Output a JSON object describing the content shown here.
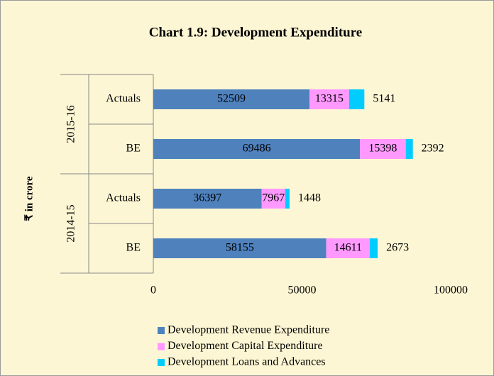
{
  "chart_data": {
    "type": "stacked_barh",
    "title": "Chart 1.9: Development Expenditure",
    "ylabel": "₹ in crore",
    "groups": [
      "2015-16",
      "2014-15"
    ],
    "categories": [
      "Actuals",
      "BE",
      "Actuals",
      "BE"
    ],
    "series": [
      {
        "name": "Development Revenue Expenditure",
        "color": "#4f81bd",
        "values": [
          52509,
          69486,
          36397,
          58155
        ]
      },
      {
        "name": "Development Capital Expenditure",
        "color": "#ff99ff",
        "values": [
          13315,
          15398,
          7967,
          14611
        ]
      },
      {
        "name": "Development Loans and Advances",
        "color": "#00ccff",
        "values": [
          5141,
          2392,
          1448,
          2673
        ]
      }
    ],
    "xlim": [
      0,
      100000
    ],
    "xticks": [
      0,
      50000,
      100000
    ]
  }
}
